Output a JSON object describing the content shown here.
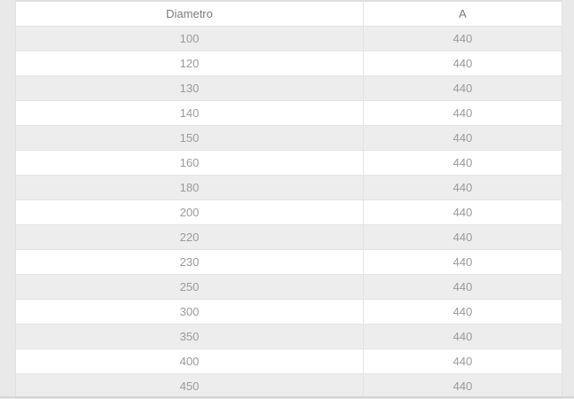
{
  "table": {
    "headers": [
      "Diametro",
      "A"
    ],
    "rows": [
      [
        "100",
        "440"
      ],
      [
        "120",
        "440"
      ],
      [
        "130",
        "440"
      ],
      [
        "140",
        "440"
      ],
      [
        "150",
        "440"
      ],
      [
        "160",
        "440"
      ],
      [
        "180",
        "440"
      ],
      [
        "200",
        "440"
      ],
      [
        "220",
        "440"
      ],
      [
        "230",
        "440"
      ],
      [
        "250",
        "440"
      ],
      [
        "300",
        "440"
      ],
      [
        "350",
        "440"
      ],
      [
        "400",
        "440"
      ],
      [
        "450",
        "440"
      ]
    ]
  },
  "colors": {
    "page_background": "#e9e9e9",
    "row_stripe": "#ededed",
    "row_white": "#ffffff",
    "cell_border": "#e3e3e3",
    "outer_border": "#e0e0e0",
    "bottom_line": "#d6d6d6",
    "header_text": "#7b7b7b",
    "cell_text": "#9a9a9a"
  }
}
